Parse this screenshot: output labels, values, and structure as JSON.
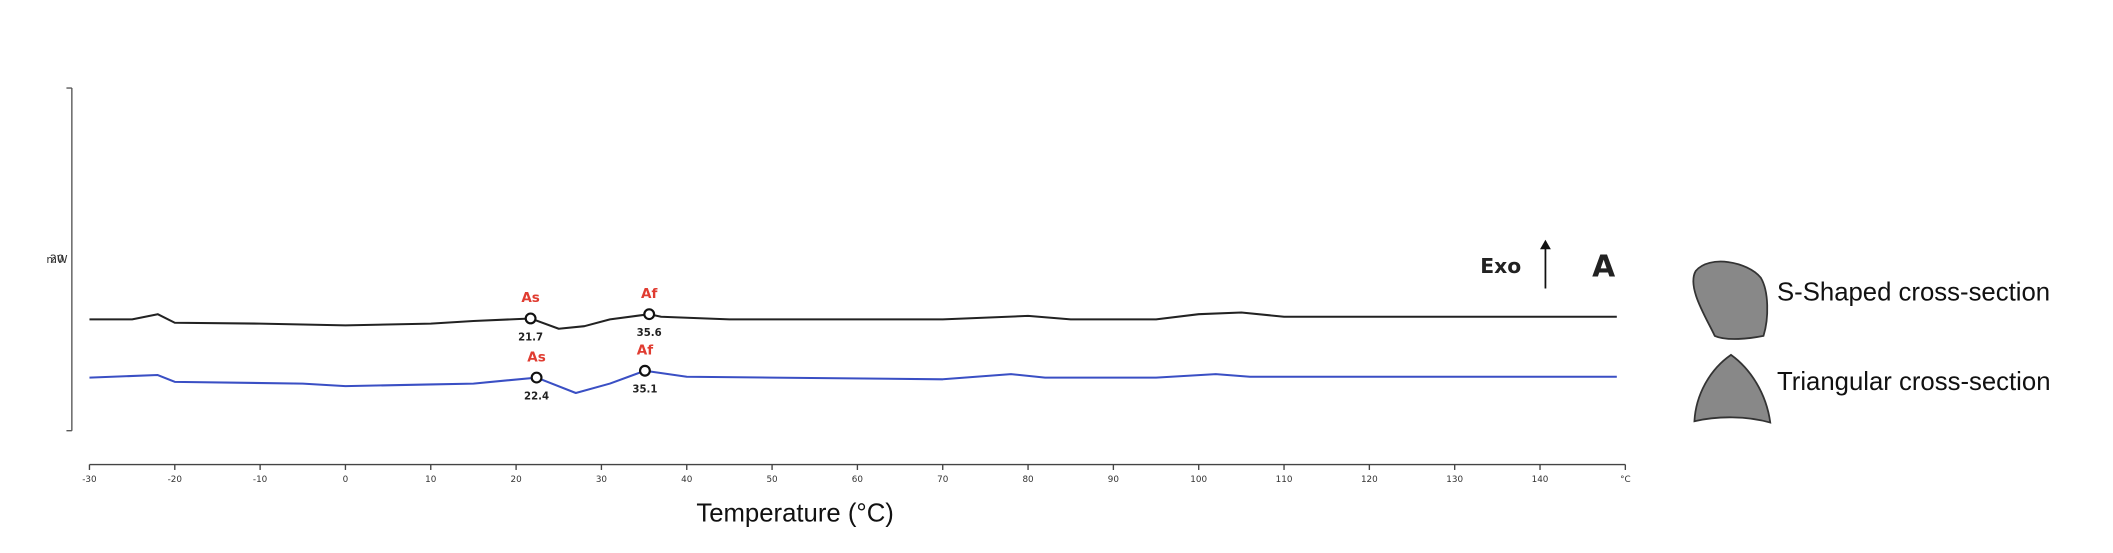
{
  "chart_data": {
    "type": "line",
    "x_label": "Temperature (°C)",
    "y_unit": "mW",
    "xlim": [
      -30,
      150
    ],
    "xticks": [
      -30,
      -20,
      -10,
      0,
      10,
      20,
      30,
      40,
      50,
      60,
      70,
      80,
      90,
      100,
      110,
      120,
      130,
      140,
      {
        "value": 150,
        "label": "°C"
      }
    ],
    "ylim": [
      0,
      40
    ],
    "yticks": [
      20
    ],
    "direction_label": "Exo",
    "panel_label": "A",
    "legend_items": [
      "S-Shaped cross-section",
      "Triangular cross-section"
    ],
    "series": [
      {
        "color": "#222222",
        "x": [
          -30,
          -25,
          -22,
          -20,
          -10,
          0,
          10,
          15,
          21.7,
          25,
          28,
          31,
          35.6,
          37,
          45,
          70,
          80,
          85,
          95,
          100,
          105,
          110,
          149
        ],
        "values": [
          13.0,
          13.0,
          13.6,
          12.6,
          12.5,
          12.3,
          12.5,
          12.8,
          13.1,
          11.9,
          12.2,
          13.0,
          13.6,
          13.3,
          13.0,
          13.0,
          13.4,
          13.0,
          13.0,
          13.6,
          13.8,
          13.3,
          13.3
        ],
        "transitions": [
          {
            "label": "As",
            "x": 21.7,
            "y": 13.1
          },
          {
            "label": "Af",
            "x": 35.6,
            "y": 13.6
          }
        ]
      },
      {
        "color": "#3a4fc4",
        "x": [
          -30,
          -22,
          -20,
          -5,
          0,
          10,
          15,
          22.4,
          27,
          31,
          35.1,
          40,
          50,
          70,
          78,
          82,
          95,
          102,
          106,
          149
        ],
        "values": [
          6.2,
          6.5,
          5.7,
          5.5,
          5.2,
          5.4,
          5.5,
          6.2,
          4.4,
          5.5,
          7.0,
          6.3,
          6.2,
          6.0,
          6.6,
          6.2,
          6.2,
          6.6,
          6.3,
          6.3
        ],
        "transitions": [
          {
            "label": "As",
            "x": 22.4,
            "y": 6.2
          },
          {
            "label": "Af",
            "x": 35.1,
            "y": 7.0
          }
        ]
      }
    ]
  }
}
